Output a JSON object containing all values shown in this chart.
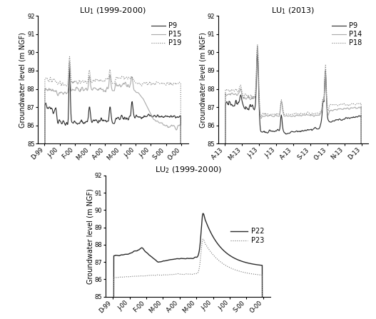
{
  "title1": "LU$_1$ (1999-2000)",
  "title2": "LU$_1$ (2013)",
  "title3": "LU$_2$ (1999-2000)",
  "ylabel": "Groundwater level (m NGF)",
  "ylim": [
    85,
    92
  ],
  "yticks": [
    85,
    86,
    87,
    88,
    89,
    90,
    91,
    92
  ],
  "xticks1": [
    "D-99",
    "J-00",
    "F-00",
    "M-00",
    "A-00",
    "M-00",
    "J-00",
    "J-00",
    "S-00",
    "O-00"
  ],
  "xticks2": [
    "A-13",
    "M-13",
    "J-13",
    "J-13",
    "A-13",
    "S-13",
    "O-13",
    "N-13",
    "D-13"
  ],
  "xticks3": [
    "D-99",
    "J-00",
    "F-00",
    "M-00",
    "A-00",
    "M-00",
    "J-00",
    "J-00",
    "S-00",
    "O-00"
  ],
  "color_dark": "#2a2a2a",
  "color_light": "#aaaaaa",
  "color_dotted": "#777777",
  "lw_main": 0.8,
  "fontsize_title": 8,
  "fontsize_tick": 6,
  "fontsize_legend": 7,
  "fontsize_label": 7
}
